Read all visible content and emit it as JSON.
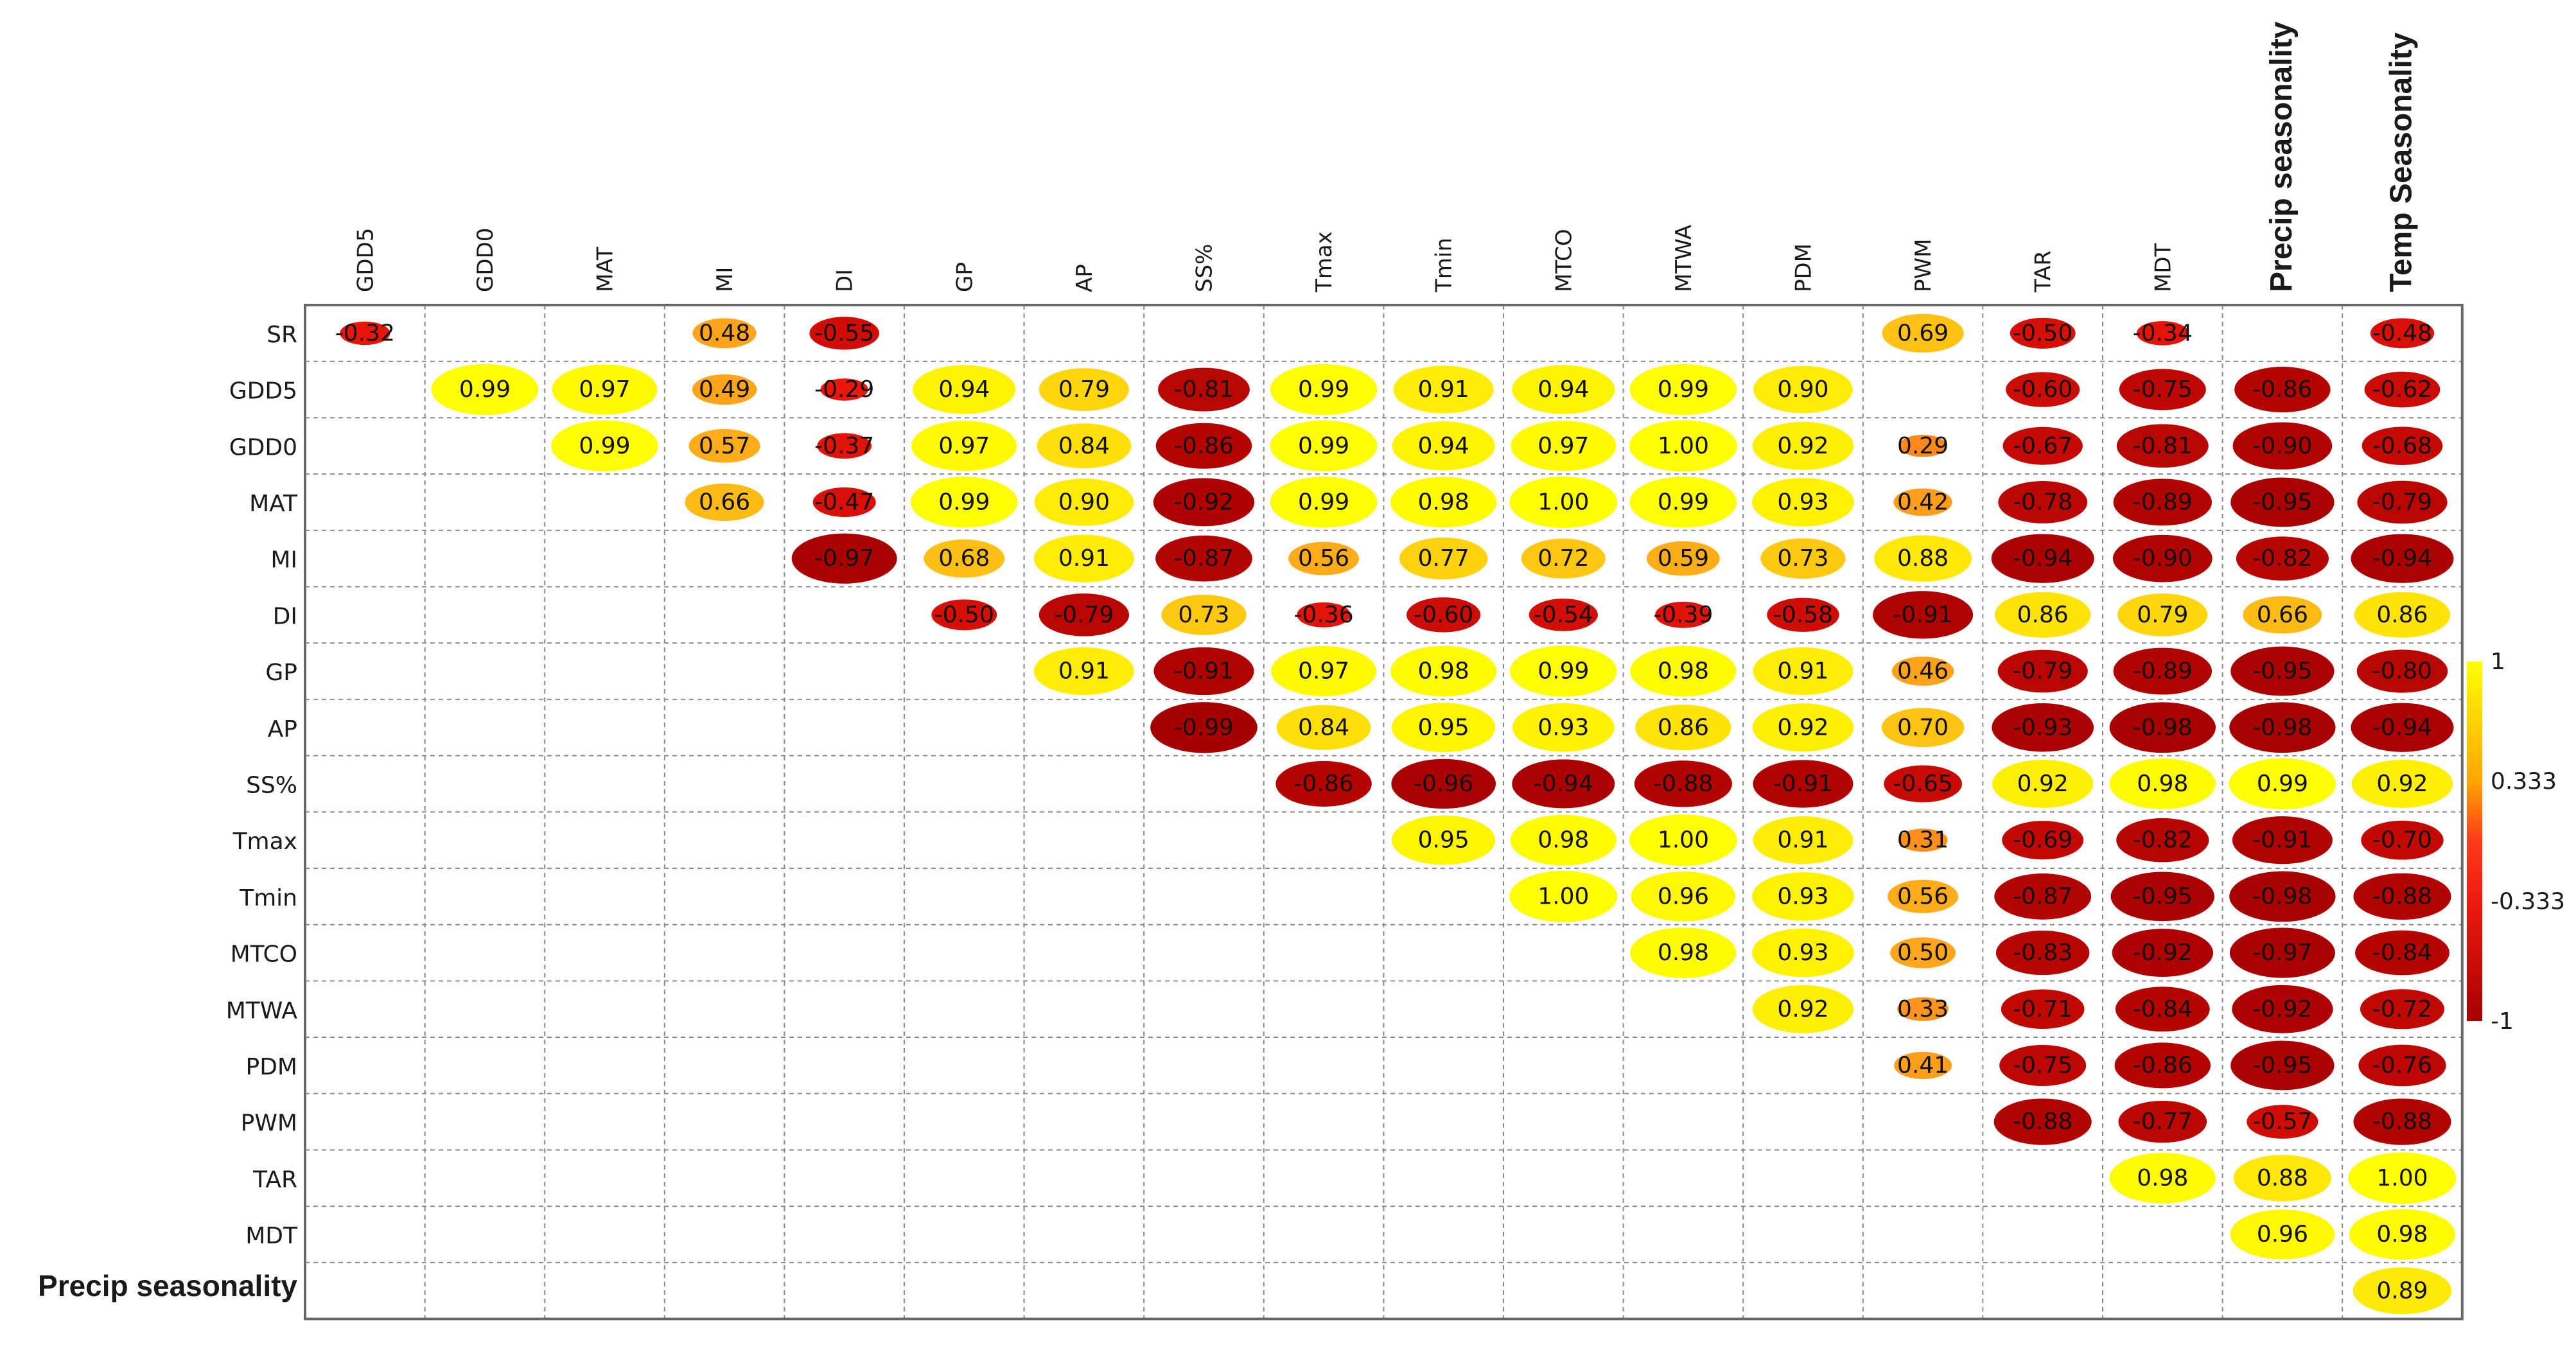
{
  "chart_data": {
    "type": "heatmap",
    "title": "",
    "columns": [
      "GDD5",
      "GDD0",
      "MAT",
      "MI",
      "DI",
      "GP",
      "AP",
      "SS%",
      "Tmax",
      "Tmin",
      "MTCO",
      "MTWA",
      "PDM",
      "PWM",
      "TAR",
      "MDT",
      "Precip seasonality",
      "Temp Seasonality"
    ],
    "rows": [
      "SR",
      "GDD5",
      "GDD0",
      "MAT",
      "MI",
      "DI",
      "GP",
      "AP",
      "SS%",
      "Tmax",
      "Tmin",
      "MTCO",
      "MTWA",
      "PDM",
      "PWM",
      "TAR",
      "MDT",
      "Precip seasonality"
    ],
    "cells": [
      [
        0,
        0,
        "-0.32"
      ],
      [
        0,
        3,
        "0.48"
      ],
      [
        0,
        4,
        "-0.55"
      ],
      [
        0,
        13,
        "0.69"
      ],
      [
        0,
        14,
        "-0.50"
      ],
      [
        0,
        15,
        "-0.34"
      ],
      [
        0,
        17,
        "-0.48"
      ],
      [
        1,
        1,
        "0.99"
      ],
      [
        1,
        2,
        "0.97"
      ],
      [
        1,
        3,
        "0.49"
      ],
      [
        1,
        4,
        "-0.29"
      ],
      [
        1,
        5,
        "0.94"
      ],
      [
        1,
        6,
        "0.79"
      ],
      [
        1,
        7,
        "-0.81"
      ],
      [
        1,
        8,
        "0.99"
      ],
      [
        1,
        9,
        "0.91"
      ],
      [
        1,
        10,
        "0.94"
      ],
      [
        1,
        11,
        "0.99"
      ],
      [
        1,
        12,
        "0.90"
      ],
      [
        1,
        14,
        "-0.60"
      ],
      [
        1,
        15,
        "-0.75"
      ],
      [
        1,
        16,
        "-0.86"
      ],
      [
        1,
        17,
        "-0.62"
      ],
      [
        2,
        2,
        "0.99"
      ],
      [
        2,
        3,
        "0.57"
      ],
      [
        2,
        4,
        "-0.37"
      ],
      [
        2,
        5,
        "0.97"
      ],
      [
        2,
        6,
        "0.84"
      ],
      [
        2,
        7,
        "-0.86"
      ],
      [
        2,
        8,
        "0.99"
      ],
      [
        2,
        9,
        "0.94"
      ],
      [
        2,
        10,
        "0.97"
      ],
      [
        2,
        11,
        "1.00"
      ],
      [
        2,
        12,
        "0.92"
      ],
      [
        2,
        13,
        "0.29"
      ],
      [
        2,
        14,
        "-0.67"
      ],
      [
        2,
        15,
        "-0.81"
      ],
      [
        2,
        16,
        "-0.90"
      ],
      [
        2,
        17,
        "-0.68"
      ],
      [
        3,
        3,
        "0.66"
      ],
      [
        3,
        4,
        "-0.47"
      ],
      [
        3,
        5,
        "0.99"
      ],
      [
        3,
        6,
        "0.90"
      ],
      [
        3,
        7,
        "-0.92"
      ],
      [
        3,
        8,
        "0.99"
      ],
      [
        3,
        9,
        "0.98"
      ],
      [
        3,
        10,
        "1.00"
      ],
      [
        3,
        11,
        "0.99"
      ],
      [
        3,
        12,
        "0.93"
      ],
      [
        3,
        13,
        "0.42"
      ],
      [
        3,
        14,
        "-0.78"
      ],
      [
        3,
        15,
        "-0.89"
      ],
      [
        3,
        16,
        "-0.95"
      ],
      [
        3,
        17,
        "-0.79"
      ],
      [
        4,
        4,
        "-0.97"
      ],
      [
        4,
        5,
        "0.68"
      ],
      [
        4,
        6,
        "0.91"
      ],
      [
        4,
        7,
        "-0.87"
      ],
      [
        4,
        8,
        "0.56"
      ],
      [
        4,
        9,
        "0.77"
      ],
      [
        4,
        10,
        "0.72"
      ],
      [
        4,
        11,
        "0.59"
      ],
      [
        4,
        12,
        "0.73"
      ],
      [
        4,
        13,
        "0.88"
      ],
      [
        4,
        14,
        "-0.94"
      ],
      [
        4,
        15,
        "-0.90"
      ],
      [
        4,
        16,
        "-0.82"
      ],
      [
        4,
        17,
        "-0.94"
      ],
      [
        5,
        5,
        "-0.50"
      ],
      [
        5,
        6,
        "-0.79"
      ],
      [
        5,
        7,
        "0.73"
      ],
      [
        5,
        8,
        "-0.36"
      ],
      [
        5,
        9,
        "-0.60"
      ],
      [
        5,
        10,
        "-0.54"
      ],
      [
        5,
        11,
        "-0.39"
      ],
      [
        5,
        12,
        "-0.58"
      ],
      [
        5,
        13,
        "-0.91"
      ],
      [
        5,
        14,
        "0.86"
      ],
      [
        5,
        15,
        "0.79"
      ],
      [
        5,
        16,
        "0.66"
      ],
      [
        5,
        17,
        "0.86"
      ],
      [
        6,
        6,
        "0.91"
      ],
      [
        6,
        7,
        "-0.91"
      ],
      [
        6,
        8,
        "0.97"
      ],
      [
        6,
        9,
        "0.98"
      ],
      [
        6,
        10,
        "0.99"
      ],
      [
        6,
        11,
        "0.98"
      ],
      [
        6,
        12,
        "0.91"
      ],
      [
        6,
        13,
        "0.46"
      ],
      [
        6,
        14,
        "-0.79"
      ],
      [
        6,
        15,
        "-0.89"
      ],
      [
        6,
        16,
        "-0.95"
      ],
      [
        6,
        17,
        "-0.80"
      ],
      [
        7,
        7,
        "-0.99"
      ],
      [
        7,
        8,
        "0.84"
      ],
      [
        7,
        9,
        "0.95"
      ],
      [
        7,
        10,
        "0.93"
      ],
      [
        7,
        11,
        "0.86"
      ],
      [
        7,
        12,
        "0.92"
      ],
      [
        7,
        13,
        "0.70"
      ],
      [
        7,
        14,
        "-0.93"
      ],
      [
        7,
        15,
        "-0.98"
      ],
      [
        7,
        16,
        "-0.98"
      ],
      [
        7,
        17,
        "-0.94"
      ],
      [
        8,
        8,
        "-0.86"
      ],
      [
        8,
        9,
        "-0.96"
      ],
      [
        8,
        10,
        "-0.94"
      ],
      [
        8,
        11,
        "-0.88"
      ],
      [
        8,
        12,
        "-0.91"
      ],
      [
        8,
        13,
        "-0.65"
      ],
      [
        8,
        14,
        "0.92"
      ],
      [
        8,
        15,
        "0.98"
      ],
      [
        8,
        16,
        "0.99"
      ],
      [
        8,
        17,
        "0.92"
      ],
      [
        9,
        9,
        "0.95"
      ],
      [
        9,
        10,
        "0.98"
      ],
      [
        9,
        11,
        "1.00"
      ],
      [
        9,
        12,
        "0.91"
      ],
      [
        9,
        13,
        "0.31"
      ],
      [
        9,
        14,
        "-0.69"
      ],
      [
        9,
        15,
        "-0.82"
      ],
      [
        9,
        16,
        "-0.91"
      ],
      [
        9,
        17,
        "-0.70"
      ],
      [
        10,
        10,
        "1.00"
      ],
      [
        10,
        11,
        "0.96"
      ],
      [
        10,
        12,
        "0.93"
      ],
      [
        10,
        13,
        "0.56"
      ],
      [
        10,
        14,
        "-0.87"
      ],
      [
        10,
        15,
        "-0.95"
      ],
      [
        10,
        16,
        "-0.98"
      ],
      [
        10,
        17,
        "-0.88"
      ],
      [
        11,
        11,
        "0.98"
      ],
      [
        11,
        12,
        "0.93"
      ],
      [
        11,
        13,
        "0.50"
      ],
      [
        11,
        14,
        "-0.83"
      ],
      [
        11,
        15,
        "-0.92"
      ],
      [
        11,
        16,
        "-0.97"
      ],
      [
        11,
        17,
        "-0.84"
      ],
      [
        12,
        12,
        "0.92"
      ],
      [
        12,
        13,
        "0.33"
      ],
      [
        12,
        14,
        "-0.71"
      ],
      [
        12,
        15,
        "-0.84"
      ],
      [
        12,
        16,
        "-0.92"
      ],
      [
        12,
        17,
        "-0.72"
      ],
      [
        13,
        13,
        "0.41"
      ],
      [
        13,
        14,
        "-0.75"
      ],
      [
        13,
        15,
        "-0.86"
      ],
      [
        13,
        16,
        "-0.95"
      ],
      [
        13,
        17,
        "-0.76"
      ],
      [
        14,
        14,
        "-0.88"
      ],
      [
        14,
        15,
        "-0.77"
      ],
      [
        14,
        16,
        "-0.57"
      ],
      [
        14,
        17,
        "-0.88"
      ],
      [
        15,
        15,
        "0.98"
      ],
      [
        15,
        16,
        "0.88"
      ],
      [
        15,
        17,
        "1.00"
      ],
      [
        16,
        16,
        "0.96"
      ],
      [
        16,
        17,
        "0.98"
      ],
      [
        17,
        17,
        "0.89"
      ]
    ],
    "colorbar": {
      "ticks": [
        "1",
        "0.333",
        "-0.333",
        "-1"
      ],
      "range": [
        -1,
        1
      ]
    },
    "colors": {
      "high": "#ffff00",
      "mid": "#ff2a1a",
      "low": "#a50000"
    },
    "grid": true
  }
}
